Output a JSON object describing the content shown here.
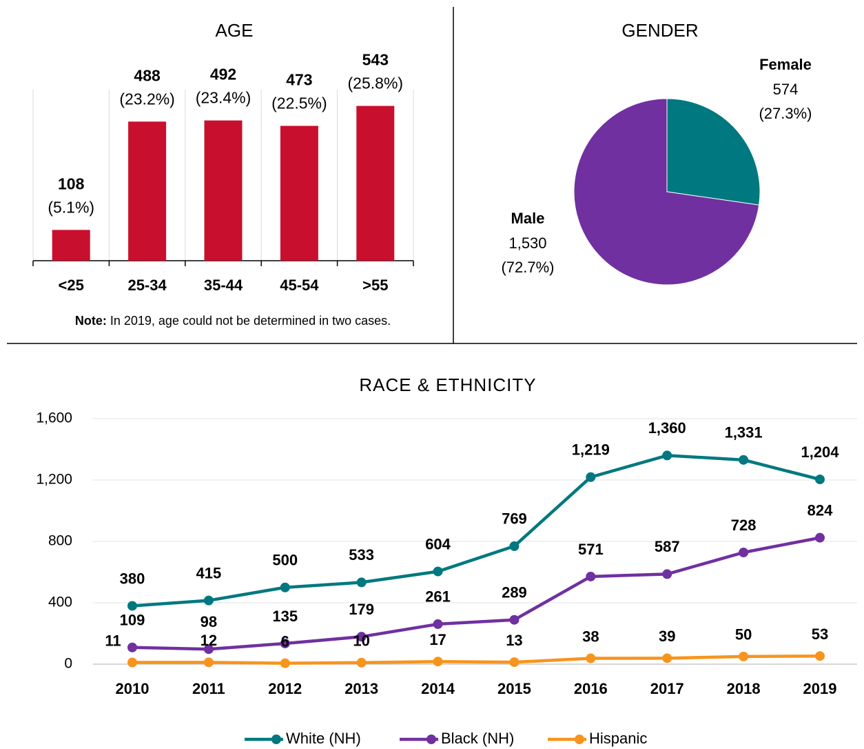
{
  "chart_data": [
    {
      "type": "bar",
      "title": "AGE",
      "categories": [
        "<25",
        "25-34",
        "35-44",
        "45-54",
        ">55"
      ],
      "values": [
        108,
        488,
        492,
        473,
        543
      ],
      "shares": [
        5.1,
        23.2,
        23.4,
        22.5,
        25.8
      ],
      "share_labels": [
        "(5.1%)",
        "(23.2%)",
        "(23.4%)",
        "(22.5%)",
        "(25.8%)"
      ],
      "color": "#c8102e",
      "ylim": [
        0,
        600
      ],
      "note_label": "Note:",
      "note": "In 2019, age could not be determined in two cases."
    },
    {
      "type": "pie",
      "title": "GENDER",
      "categories": [
        "Female",
        "Male"
      ],
      "values": [
        574,
        1530
      ],
      "value_labels": [
        "574",
        "1,530"
      ],
      "shares": [
        27.3,
        72.7
      ],
      "share_labels": [
        "(27.3%)",
        "(72.7%)"
      ],
      "colors": [
        "#00787f",
        "#7030a0"
      ]
    },
    {
      "type": "line",
      "title": "RACE & ETHNICITY",
      "categories": [
        "2010",
        "2011",
        "2012",
        "2013",
        "2014",
        "2015",
        "2016",
        "2017",
        "2018",
        "2019"
      ],
      "series": [
        {
          "name": "White (NH)",
          "color": "#00787f",
          "values": [
            380,
            415,
            500,
            533,
            604,
            769,
            1219,
            1360,
            1331,
            1204
          ],
          "value_labels": [
            "380",
            "415",
            "500",
            "533",
            "604",
            "769",
            "1,219",
            "1,360",
            "1,331",
            "1,204"
          ]
        },
        {
          "name": "Black (NH)",
          "color": "#7030a0",
          "values": [
            109,
            98,
            135,
            179,
            261,
            289,
            571,
            587,
            728,
            824
          ]
        },
        {
          "name": "Hispanic",
          "color": "#f7941d",
          "values": [
            11,
            12,
            6,
            10,
            17,
            13,
            38,
            39,
            50,
            53
          ]
        }
      ],
      "ylim": [
        0,
        1600
      ],
      "yticks": [
        0,
        400,
        800,
        {
          "value": 1200,
          "label": "1,200"
        },
        {
          "value": 1600,
          "label": "1,600"
        }
      ],
      "grid": true,
      "legend": "bottom"
    }
  ]
}
